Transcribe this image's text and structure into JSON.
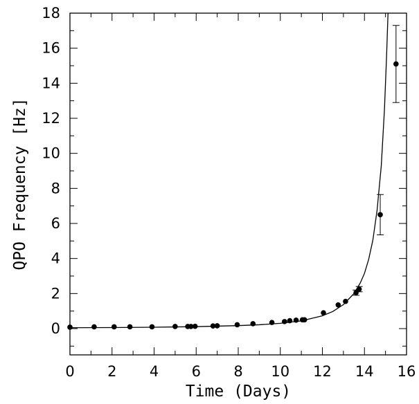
{
  "chart_data": {
    "type": "scatter",
    "title": "",
    "xlabel": "Time (Days)",
    "ylabel": "QPO Frequency [Hz]",
    "xlim": [
      0,
      16
    ],
    "ylim": [
      -1.5,
      18
    ],
    "x_ticks": [
      "0",
      "2",
      "4",
      "6",
      "8",
      "10",
      "12",
      "14",
      "16"
    ],
    "y_ticks": [
      "0",
      "2",
      "4",
      "6",
      "8",
      "10",
      "12",
      "14",
      "16",
      "18"
    ],
    "grid": false,
    "legend": "none",
    "marker_color": "#000000",
    "series": [
      {
        "points": [
          {
            "x": 0.0,
            "y": 0.08
          },
          {
            "x": 1.15,
            "y": 0.1
          },
          {
            "x": 2.1,
            "y": 0.1
          },
          {
            "x": 2.85,
            "y": 0.1
          },
          {
            "x": 3.9,
            "y": 0.1
          },
          {
            "x": 5.0,
            "y": 0.12
          },
          {
            "x": 5.6,
            "y": 0.12
          },
          {
            "x": 5.75,
            "y": 0.12
          },
          {
            "x": 5.95,
            "y": 0.13
          },
          {
            "x": 6.8,
            "y": 0.15
          },
          {
            "x": 7.0,
            "y": 0.16
          },
          {
            "x": 7.95,
            "y": 0.22
          },
          {
            "x": 8.7,
            "y": 0.28
          },
          {
            "x": 9.6,
            "y": 0.35
          },
          {
            "x": 10.2,
            "y": 0.4
          },
          {
            "x": 10.45,
            "y": 0.45
          },
          {
            "x": 10.75,
            "y": 0.48
          },
          {
            "x": 11.05,
            "y": 0.5
          },
          {
            "x": 11.15,
            "y": 0.5
          },
          {
            "x": 12.05,
            "y": 0.9
          },
          {
            "x": 12.75,
            "y": 1.35
          },
          {
            "x": 13.1,
            "y": 1.55
          },
          {
            "x": 13.6,
            "y": 2.05,
            "err": 0.15
          },
          {
            "x": 13.75,
            "y": 2.25,
            "err": 0.15
          },
          {
            "x": 14.75,
            "y": 6.5,
            "err": 1.15
          },
          {
            "x": 15.5,
            "y": 15.1,
            "err": 2.2
          }
        ]
      }
    ],
    "fit_curve": {
      "type": "line",
      "points": [
        {
          "x": 0.0,
          "y": 0.05
        },
        {
          "x": 2.0,
          "y": 0.06
        },
        {
          "x": 4.0,
          "y": 0.08
        },
        {
          "x": 6.0,
          "y": 0.11
        },
        {
          "x": 8.0,
          "y": 0.17
        },
        {
          "x": 9.0,
          "y": 0.22
        },
        {
          "x": 10.0,
          "y": 0.3
        },
        {
          "x": 11.0,
          "y": 0.44
        },
        {
          "x": 12.0,
          "y": 0.73
        },
        {
          "x": 12.5,
          "y": 0.98
        },
        {
          "x": 13.0,
          "y": 1.37
        },
        {
          "x": 13.5,
          "y": 2.0
        },
        {
          "x": 13.8,
          "y": 2.6
        },
        {
          "x": 14.0,
          "y": 3.15
        },
        {
          "x": 14.2,
          "y": 3.95
        },
        {
          "x": 14.4,
          "y": 5.05
        },
        {
          "x": 14.6,
          "y": 6.75
        },
        {
          "x": 14.8,
          "y": 9.3
        },
        {
          "x": 14.95,
          "y": 12.5
        },
        {
          "x": 15.05,
          "y": 15.5
        },
        {
          "x": 15.12,
          "y": 18.0
        }
      ]
    }
  }
}
